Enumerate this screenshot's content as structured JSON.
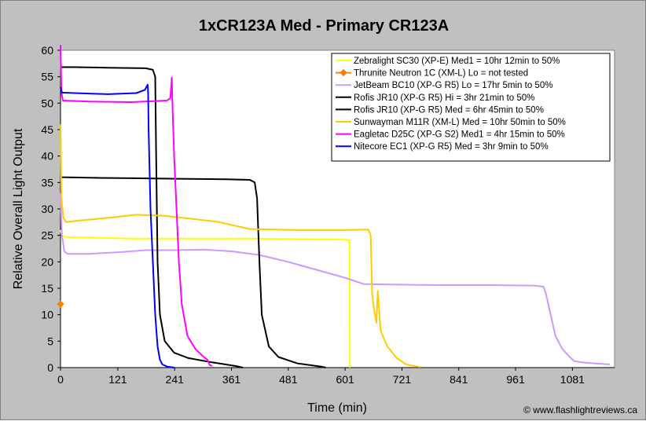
{
  "chart_data": {
    "type": "line",
    "title": "1xCR123A Med - Primary CR123A",
    "xlabel": "Time (min)",
    "ylabel": "Relative Overall Light Output",
    "xlim": [
      0,
      1170
    ],
    "ylim": [
      0,
      60
    ],
    "xticks": [
      0,
      121,
      241,
      361,
      481,
      601,
      721,
      841,
      961,
      1081
    ],
    "yticks": [
      0,
      5,
      10,
      15,
      20,
      25,
      30,
      35,
      40,
      45,
      50,
      55,
      60
    ],
    "grid": false,
    "legend_position": "top-right",
    "copyright": "© www.flashlightreviews.ca",
    "series": [
      {
        "name": "Zebralight SC30 (XP-E) Med1 = 10hr 12min to 50%",
        "color": "#ffff00",
        "marker": "none",
        "points": [
          [
            0,
            26
          ],
          [
            3,
            25
          ],
          [
            10,
            24.7
          ],
          [
            60,
            24.6
          ],
          [
            150,
            24.4
          ],
          [
            250,
            24.4
          ],
          [
            400,
            24.4
          ],
          [
            500,
            24.3
          ],
          [
            600,
            24.2
          ],
          [
            610,
            24.1
          ],
          [
            611,
            0
          ]
        ]
      },
      {
        "name": "Thrunite Neutron 1C (XM-L) Lo = not tested",
        "color": "#ff8000",
        "marker": "diamond",
        "points": [
          [
            0,
            12
          ]
        ]
      },
      {
        "name": "JetBeam BC10 (XP-G R5) Lo = 17hr 5min to 50%",
        "color": "#cc99ff",
        "marker": "none",
        "points": [
          [
            0,
            33
          ],
          [
            3,
            25
          ],
          [
            8,
            22
          ],
          [
            15,
            21.5
          ],
          [
            60,
            21.5
          ],
          [
            120,
            21.8
          ],
          [
            180,
            22.2
          ],
          [
            240,
            22.2
          ],
          [
            300,
            22.3
          ],
          [
            360,
            22
          ],
          [
            420,
            21.3
          ],
          [
            480,
            20
          ],
          [
            540,
            18.5
          ],
          [
            600,
            17
          ],
          [
            640,
            15.8
          ],
          [
            700,
            15.7
          ],
          [
            800,
            15.6
          ],
          [
            900,
            15.6
          ],
          [
            1000,
            15.5
          ],
          [
            1020,
            15.3
          ],
          [
            1025,
            14
          ],
          [
            1035,
            10
          ],
          [
            1045,
            6
          ],
          [
            1060,
            3.5
          ],
          [
            1075,
            2
          ],
          [
            1085,
            1.2
          ],
          [
            1110,
            0.9
          ],
          [
            1160,
            0.6
          ]
        ]
      },
      {
        "name": "Rofis JR10 (XP-G R5) Hi = 3hr 21min to 50%",
        "color": "#000000",
        "marker": "none",
        "points": [
          [
            0,
            56.8
          ],
          [
            30,
            56.8
          ],
          [
            100,
            56.7
          ],
          [
            180,
            56.6
          ],
          [
            195,
            56.3
          ],
          [
            200,
            55
          ],
          [
            202,
            40
          ],
          [
            205,
            20
          ],
          [
            210,
            10
          ],
          [
            220,
            5
          ],
          [
            240,
            2.8
          ],
          [
            270,
            1.8
          ],
          [
            320,
            1
          ],
          [
            370,
            0.3
          ],
          [
            385,
            0
          ]
        ]
      },
      {
        "name": "Rofis JR10 (XP-G R5) Med = 6hr 45min to 50%",
        "color": "#000000",
        "marker": "none",
        "points": [
          [
            0,
            36.2
          ],
          [
            3,
            36
          ],
          [
            60,
            35.9
          ],
          [
            150,
            35.8
          ],
          [
            250,
            35.7
          ],
          [
            350,
            35.6
          ],
          [
            400,
            35.5
          ],
          [
            410,
            35
          ],
          [
            415,
            32
          ],
          [
            420,
            20
          ],
          [
            425,
            10
          ],
          [
            440,
            4
          ],
          [
            460,
            2
          ],
          [
            500,
            0.8
          ],
          [
            550,
            0.2
          ],
          [
            560,
            0
          ]
        ]
      },
      {
        "name": "Sunwayman M11R (XM-L) Med = 10hr 50min to 50%",
        "color": "#ffcc00",
        "marker": "none",
        "points": [
          [
            0,
            46
          ],
          [
            2,
            32
          ],
          [
            6,
            28.3
          ],
          [
            12,
            27.5
          ],
          [
            40,
            27.8
          ],
          [
            100,
            28.3
          ],
          [
            160,
            28.9
          ],
          [
            220,
            28.7
          ],
          [
            280,
            28.1
          ],
          [
            330,
            27.6
          ],
          [
            400,
            26.2
          ],
          [
            500,
            26
          ],
          [
            600,
            26
          ],
          [
            650,
            26.1
          ],
          [
            655,
            25
          ],
          [
            658,
            14
          ],
          [
            662,
            11
          ],
          [
            667,
            8.5
          ],
          [
            670,
            14.5
          ],
          [
            676,
            7
          ],
          [
            690,
            4
          ],
          [
            710,
            1.8
          ],
          [
            730,
            0.6
          ],
          [
            760,
            0.1
          ]
        ]
      },
      {
        "name": "Eagletac D25C (XP-G S2) Med1 = 4hr 15min to 50%",
        "color": "#ff00ff",
        "marker": "none",
        "points": [
          [
            0,
            61
          ],
          [
            2,
            52
          ],
          [
            5,
            50.5
          ],
          [
            60,
            50.3
          ],
          [
            150,
            50.2
          ],
          [
            225,
            50.5
          ],
          [
            232,
            51
          ],
          [
            235,
            54.8
          ],
          [
            237,
            48
          ],
          [
            240,
            40
          ],
          [
            245,
            30
          ],
          [
            250,
            20
          ],
          [
            256,
            12
          ],
          [
            268,
            6
          ],
          [
            285,
            3.5
          ],
          [
            300,
            2.2
          ],
          [
            310,
            1.5
          ],
          [
            315,
            0.5
          ],
          [
            320,
            0.3
          ]
        ]
      },
      {
        "name": "Nitecore EC1 (XP-G R5) Med = 3hr 9min to 50%",
        "color": "#0000ff",
        "marker": "none",
        "points": [
          [
            0,
            53
          ],
          [
            3,
            52
          ],
          [
            30,
            51.9
          ],
          [
            100,
            51.7
          ],
          [
            160,
            51.9
          ],
          [
            178,
            52.5
          ],
          [
            184,
            53.5
          ],
          [
            185,
            52
          ],
          [
            186,
            45
          ],
          [
            190,
            30
          ],
          [
            195,
            20
          ],
          [
            200,
            10
          ],
          [
            205,
            4
          ],
          [
            210,
            1.5
          ],
          [
            215,
            0.6
          ],
          [
            225,
            0.2
          ],
          [
            240,
            0
          ]
        ]
      }
    ]
  }
}
